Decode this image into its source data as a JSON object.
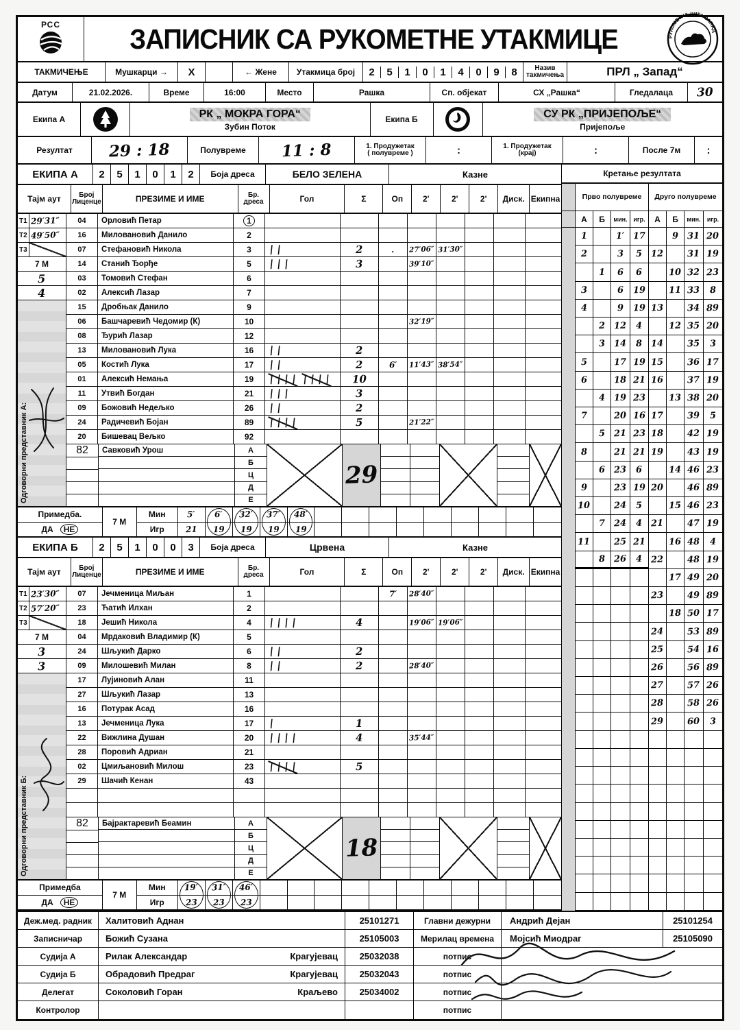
{
  "header": {
    "org": "РСС",
    "title": "ЗАПИСНИК СА РУКОМЕТНЕ УТАКМИЦЕ",
    "stamp_text": "РУКОМЕТНА ЛИГА ЗАПАД"
  },
  "comp_row": {
    "competition_label": "ТАКМИЧЕЊЕ",
    "men_label": "Мушкарци →",
    "men_mark": "X",
    "women_label": "← Жене",
    "match_no_label": "Утакмица број",
    "match_no": "251014098",
    "name_label_1": "Назив",
    "name_label_2": "такмичења",
    "name": "ПРЛ „ Запад“"
  },
  "info_row": {
    "date_label": "Датум",
    "date": "21.02.2026.",
    "time_label": "Време",
    "time": "16:00",
    "place_label": "Место",
    "place": "Рашка",
    "venue_label": "Сп. објекат",
    "venue": "СХ „Рашка“",
    "spectators_label": "Гледалаца",
    "spectators": "30"
  },
  "teams": {
    "a_label": "Екипа А",
    "a_name": "РК „ МОКРА ГОРА“",
    "a_city": "Зубин Поток",
    "b_label": "Екипа Б",
    "b_name": "СУ РК „ПРИЈЕПОЉЕ“",
    "b_city": "Пријепоље"
  },
  "result": {
    "label": "Резултат",
    "final": "29 : 18",
    "half_label": "Полувреме",
    "half": "11 : 8",
    "ot1_label_1": "1. Продужетак",
    "ot1_label_2": "( полувреме )",
    "ot2_label_1": "1. Продужетак",
    "ot2_label_2": "(крај)",
    "after7_label": "После 7м",
    "colon": ":"
  },
  "table_head": {
    "timeout": "Тајм аут",
    "license_1": "Број",
    "license_2": "Лиценце",
    "name": "ПРЕЗИМЕ И ИМЕ",
    "dress_1": "Бр.",
    "dress_2": "дреса",
    "goal": "Гол",
    "sum": "Σ",
    "op": "Оп",
    "two": "2'",
    "disc": "Диск.",
    "team": "Екипна"
  },
  "movement": {
    "label": "Кретање резултата",
    "h1": "Прво полувреме",
    "h2": "Друго полувреме",
    "cols": [
      "А",
      "Б",
      "мин.",
      "игр."
    ],
    "h1_end_row": 19,
    "total_rows": 38,
    "rows": [
      [
        "1",
        "",
        "1′",
        "17",
        "",
        "9",
        "31",
        "20"
      ],
      [
        "2",
        "",
        "3",
        "5",
        "12",
        "",
        "31",
        "19"
      ],
      [
        "",
        "1",
        "6",
        "6",
        "",
        "10",
        "32",
        "23"
      ],
      [
        "3",
        "",
        "6",
        "19",
        "",
        "11",
        "33",
        "8"
      ],
      [
        "4",
        "",
        "9",
        "19",
        "13",
        "",
        "34",
        "89"
      ],
      [
        "",
        "2",
        "12",
        "4",
        "",
        "12",
        "35",
        "20"
      ],
      [
        "",
        "3",
        "14",
        "8",
        "14",
        "",
        "35",
        "3"
      ],
      [
        "5",
        "",
        "17",
        "19",
        "15",
        "",
        "36",
        "17"
      ],
      [
        "6",
        "",
        "18",
        "21",
        "16",
        "",
        "37",
        "19"
      ],
      [
        "",
        "4",
        "19",
        "23",
        "",
        "13",
        "38",
        "20"
      ],
      [
        "7",
        "",
        "20",
        "16",
        "17",
        "",
        "39",
        "5"
      ],
      [
        "",
        "5",
        "21",
        "23",
        "18",
        "",
        "42",
        "19"
      ],
      [
        "8",
        "",
        "21",
        "21",
        "19",
        "",
        "43",
        "19"
      ],
      [
        "",
        "6",
        "23",
        "6",
        "",
        "14",
        "46",
        "23"
      ],
      [
        "9",
        "",
        "23",
        "19",
        "20",
        "",
        "46",
        "89"
      ],
      [
        "10",
        "",
        "24",
        "5",
        "",
        "15",
        "46",
        "23"
      ],
      [
        "",
        "7",
        "24",
        "4",
        "21",
        "",
        "47",
        "19"
      ],
      [
        "11",
        "",
        "25",
        "21",
        "",
        "16",
        "48",
        "4"
      ],
      [
        "",
        "8",
        "26",
        "4",
        "22",
        "",
        "48",
        "19"
      ],
      [
        "",
        "",
        "",
        "",
        "",
        "17",
        "49",
        "20"
      ],
      [
        "",
        "",
        "",
        "",
        "23",
        "",
        "49",
        "89"
      ],
      [
        "",
        "",
        "",
        "",
        "",
        "18",
        "50",
        "17"
      ],
      [
        "",
        "",
        "",
        "",
        "24",
        "",
        "53",
        "89"
      ],
      [
        "",
        "",
        "",
        "",
        "25",
        "",
        "54",
        "16"
      ],
      [
        "",
        "",
        "",
        "",
        "26",
        "",
        "56",
        "89"
      ],
      [
        "",
        "",
        "",
        "",
        "27",
        "",
        "57",
        "26"
      ],
      [
        "",
        "",
        "",
        "",
        "28",
        "",
        "58",
        "26"
      ],
      [
        "",
        "",
        "",
        "",
        "29",
        "",
        "60",
        "3"
      ]
    ]
  },
  "team_a": {
    "section": "ЕКИПА А",
    "code": [
      "2",
      "5",
      "1",
      "0",
      "1",
      "2"
    ],
    "dress_label": "Боја дреса",
    "dress_color": "БЕЛО ЗЕЛЕНА",
    "penalties_label": "Казне",
    "rep_label": "Одговорни представник А:",
    "timeouts": [
      {
        "t": "Т1",
        "v": "29′31″"
      },
      {
        "t": "Т2",
        "v": "49′50″"
      },
      {
        "t": "Т3",
        "diag": true
      },
      {
        "label": "7 М"
      },
      {
        "hw": "5"
      },
      {
        "hw": "4"
      }
    ],
    "players": [
      {
        "lic": "04",
        "name": "Орловић Петар",
        "dress": "1",
        "dress_circled": true,
        "goals": 0,
        "sum": "",
        "op": "",
        "p2": [
          "",
          "",
          ""
        ]
      },
      {
        "lic": "16",
        "name": "Миловановић Данило",
        "dress": "2",
        "goals": 0,
        "sum": "",
        "op": "",
        "p2": [
          "",
          "",
          ""
        ]
      },
      {
        "lic": "07",
        "name": "Стефановић Никола",
        "dress": "3",
        "goals": 2,
        "sum": "2",
        "op": ".",
        "p2": [
          "27′06″",
          "31′30″",
          ""
        ]
      },
      {
        "lic": "14",
        "name": "Станић Ђорђе",
        "dress": "5",
        "goals": 3,
        "sum": "3",
        "op": "",
        "p2": [
          "39′10″",
          "",
          ""
        ]
      },
      {
        "lic": "03",
        "name": "Томовић Стефан",
        "dress": "6",
        "goals": 0,
        "sum": "",
        "op": "",
        "p2": [
          "",
          "",
          ""
        ]
      },
      {
        "lic": "02",
        "name": "Алексић Лазар",
        "dress": "7",
        "goals": 0,
        "sum": "",
        "op": "",
        "p2": [
          "",
          "",
          ""
        ]
      },
      {
        "lic": "15",
        "name": "Дробњак Данило",
        "dress": "9",
        "goals": 0,
        "sum": "",
        "op": "",
        "p2": [
          "",
          "",
          ""
        ]
      },
      {
        "lic": "06",
        "name": "Башчаревић Чедомир  (К)",
        "dress": "10",
        "goals": 0,
        "sum": "",
        "op": "",
        "p2": [
          "32′19″",
          "",
          ""
        ]
      },
      {
        "lic": "08",
        "name": "Ђурић Лазар",
        "dress": "12",
        "goals": 0,
        "sum": "",
        "op": "",
        "p2": [
          "",
          "",
          ""
        ]
      },
      {
        "lic": "13",
        "name": "Миловановић Лука",
        "dress": "16",
        "goals": 2,
        "sum": "2",
        "op": "",
        "p2": [
          "",
          "",
          ""
        ]
      },
      {
        "lic": "05",
        "name": "Костић Лука",
        "dress": "17",
        "goals": 2,
        "sum": "2",
        "op": "6′",
        "p2": [
          "11′43″",
          "38′54″",
          ""
        ]
      },
      {
        "lic": "01",
        "name": "Алексић Немања",
        "dress": "19",
        "goals": 10,
        "sum": "10",
        "op": "",
        "p2": [
          "",
          "",
          ""
        ]
      },
      {
        "lic": "11",
        "name": "Утвић Богдан",
        "dress": "21",
        "goals": 3,
        "sum": "3",
        "op": "",
        "p2": [
          "",
          "",
          ""
        ]
      },
      {
        "lic": "09",
        "name": "Божовић Недељко",
        "dress": "26",
        "goals": 2,
        "sum": "2",
        "op": "",
        "p2": [
          "",
          "",
          ""
        ]
      },
      {
        "lic": "24",
        "name": "Радичевић Бојан",
        "dress": "89",
        "goals": 5,
        "sum": "5",
        "op": "",
        "p2": [
          "21′22″",
          "",
          ""
        ]
      },
      {
        "lic": "20",
        "name": "Бишевац Вељко",
        "dress": "92",
        "goals": 0,
        "sum": "",
        "op": "",
        "p2": [
          "",
          "",
          ""
        ]
      }
    ],
    "officials": [
      {
        "lic": "82",
        "name": "Савковић Урош",
        "letter": "А"
      },
      {
        "lic": "",
        "name": "",
        "letter": "Б"
      },
      {
        "lic": "",
        "name": "",
        "letter": "Ц"
      },
      {
        "lic": "",
        "name": "",
        "letter": "Д"
      },
      {
        "lic": "",
        "name": "",
        "letter": "Е"
      }
    ],
    "crossed_total": "29",
    "remark": {
      "label": "Примедба.",
      "yes": "ДА",
      "no": "НЕ",
      "no_circled": true,
      "sevenm": "7 М",
      "min_label": "Мин",
      "igr_label": "Игр",
      "entries": [
        {
          "min": "5′",
          "igr": "21",
          "circled": false
        },
        {
          "min": "6′",
          "igr": "19",
          "circled": true
        },
        {
          "min": "32′",
          "igr": "19",
          "circled": true
        },
        {
          "min": "37′",
          "igr": "19",
          "circled": true
        },
        {
          "min": "48′",
          "igr": "19",
          "circled": true
        }
      ]
    }
  },
  "team_b": {
    "section": "ЕКИПА Б",
    "code": [
      "2",
      "5",
      "1",
      "0",
      "0",
      "3"
    ],
    "dress_label": "Боја дреса",
    "dress_color": "Црвена",
    "penalties_label": "Казне",
    "rep_label": "Одговорни представник Б:",
    "timeouts": [
      {
        "t": "Т1",
        "v": "23′30″"
      },
      {
        "t": "Т2",
        "v": "57′20″"
      },
      {
        "t": "Т3",
        "diag": true
      },
      {
        "label": "7 М"
      },
      {
        "hw": "3"
      },
      {
        "hw": "3"
      }
    ],
    "players": [
      {
        "lic": "07",
        "name": "Јечменица Миљан",
        "dress": "1",
        "goals": 0,
        "sum": "",
        "op": "7′",
        "p2": [
          "28′40″",
          "",
          ""
        ]
      },
      {
        "lic": "23",
        "name": "Ћатић Илхан",
        "dress": "2",
        "goals": 0,
        "sum": "",
        "op": "",
        "p2": [
          "",
          "",
          ""
        ]
      },
      {
        "lic": "18",
        "name": "Јешић Никола",
        "dress": "4",
        "goals": 4,
        "sum": "4",
        "op": "",
        "p2": [
          "19′06″",
          "19′06″",
          ""
        ]
      },
      {
        "lic": "04",
        "name": "Мрдаковић Владимир  (К)",
        "dress": "5",
        "goals": 0,
        "sum": "",
        "op": "",
        "p2": [
          "",
          "",
          ""
        ]
      },
      {
        "lic": "24",
        "name": "Шљукић Дарко",
        "dress": "6",
        "goals": 2,
        "sum": "2",
        "op": "",
        "p2": [
          "",
          "",
          ""
        ]
      },
      {
        "lic": "09",
        "name": "Милошевић Милан",
        "dress": "8",
        "goals": 2,
        "sum": "2",
        "op": "",
        "p2": [
          "28′40″",
          "",
          ""
        ]
      },
      {
        "lic": "17",
        "name": "Лујиновић Алан",
        "dress": "11",
        "goals": 0,
        "sum": "",
        "op": "",
        "p2": [
          "",
          "",
          ""
        ]
      },
      {
        "lic": "27",
        "name": "Шљукић Лазар",
        "dress": "13",
        "goals": 0,
        "sum": "",
        "op": "",
        "p2": [
          "",
          "",
          ""
        ]
      },
      {
        "lic": "16",
        "name": "Потурак Асад",
        "dress": "16",
        "goals": 0,
        "sum": "",
        "op": "",
        "p2": [
          "",
          "",
          ""
        ]
      },
      {
        "lic": "13",
        "name": "Јечменица Лука",
        "dress": "17",
        "goals": 1,
        "sum": "1",
        "op": "",
        "p2": [
          "",
          "",
          ""
        ]
      },
      {
        "lic": "22",
        "name": "Вижлина Душан",
        "dress": "20",
        "goals": 4,
        "sum": "4",
        "op": "",
        "p2": [
          "35′44″",
          "",
          ""
        ]
      },
      {
        "lic": "28",
        "name": "Поровић Адриан",
        "dress": "21",
        "goals": 0,
        "sum": "",
        "op": "",
        "p2": [
          "",
          "",
          ""
        ]
      },
      {
        "lic": "02",
        "name": "Цмиљановић Милош",
        "dress": "23",
        "goals": 5,
        "sum": "5",
        "op": "",
        "p2": [
          "",
          "",
          ""
        ]
      },
      {
        "lic": "29",
        "name": "Шачић Кенан",
        "dress": "43",
        "goals": 0,
        "sum": "",
        "op": "",
        "p2": [
          "",
          "",
          ""
        ]
      },
      {
        "lic": "",
        "name": "",
        "dress": "",
        "goals": 0,
        "sum": "",
        "op": "",
        "p2": [
          "",
          "",
          ""
        ]
      },
      {
        "lic": "",
        "name": "",
        "dress": "",
        "goals": 0,
        "sum": "",
        "op": "",
        "p2": [
          "",
          "",
          ""
        ]
      }
    ],
    "officials": [
      {
        "lic": "82",
        "name": "Бајрактаревић Беамин",
        "letter": "А"
      },
      {
        "lic": "",
        "name": "",
        "letter": "Б"
      },
      {
        "lic": "",
        "name": "",
        "letter": "Ц"
      },
      {
        "lic": "",
        "name": "",
        "letter": "Д"
      },
      {
        "lic": "",
        "name": "",
        "letter": "Е"
      }
    ],
    "crossed_total": "18",
    "remark": {
      "label": "Примедба",
      "yes": "ДА",
      "no": "НЕ",
      "no_circled": true,
      "sevenm": "7 М",
      "min_label": "Мин",
      "igr_label": "Игр",
      "entries": [
        {
          "min": "19′",
          "igr": "23",
          "circled": true
        },
        {
          "min": "31′",
          "igr": "23",
          "circled": true
        },
        {
          "min": "46′",
          "igr": "23",
          "circled": true
        }
      ]
    }
  },
  "bottom": {
    "rows": [
      {
        "role": "Деж.мед. радник",
        "name": "Халитовић Аднан",
        "city": "",
        "lic": "25101271",
        "rlabel": "Главни дежурни",
        "rname": "Андрић Дејан",
        "rlic": "25101254"
      },
      {
        "role": "Записничар",
        "name": "Божић Сузана",
        "city": "",
        "lic": "25105003",
        "rlabel": "Мерилац времена",
        "rname": "Мојсић Миодраг",
        "rlic": "25105090"
      },
      {
        "role": "Судија А",
        "name": "Рилак Александар",
        "city": "Крагујевац",
        "lic": "25032038",
        "rlabel": "потпис",
        "rname": "",
        "rlic": ""
      },
      {
        "role": "Судија Б",
        "name": "Обрадовић Предраг",
        "city": "Крагујевац",
        "lic": "25032043",
        "rlabel": "потпис",
        "rname": "",
        "rlic": ""
      },
      {
        "role": "Делегат",
        "name": "Соколовић Горан",
        "city": "Краљево",
        "lic": "25034002",
        "rlabel": "потпис",
        "rname": "",
        "rlic": ""
      },
      {
        "role": "Контролор",
        "name": "",
        "city": "",
        "lic": "",
        "rlabel": "потпис",
        "rname": "",
        "rlic": ""
      }
    ]
  }
}
